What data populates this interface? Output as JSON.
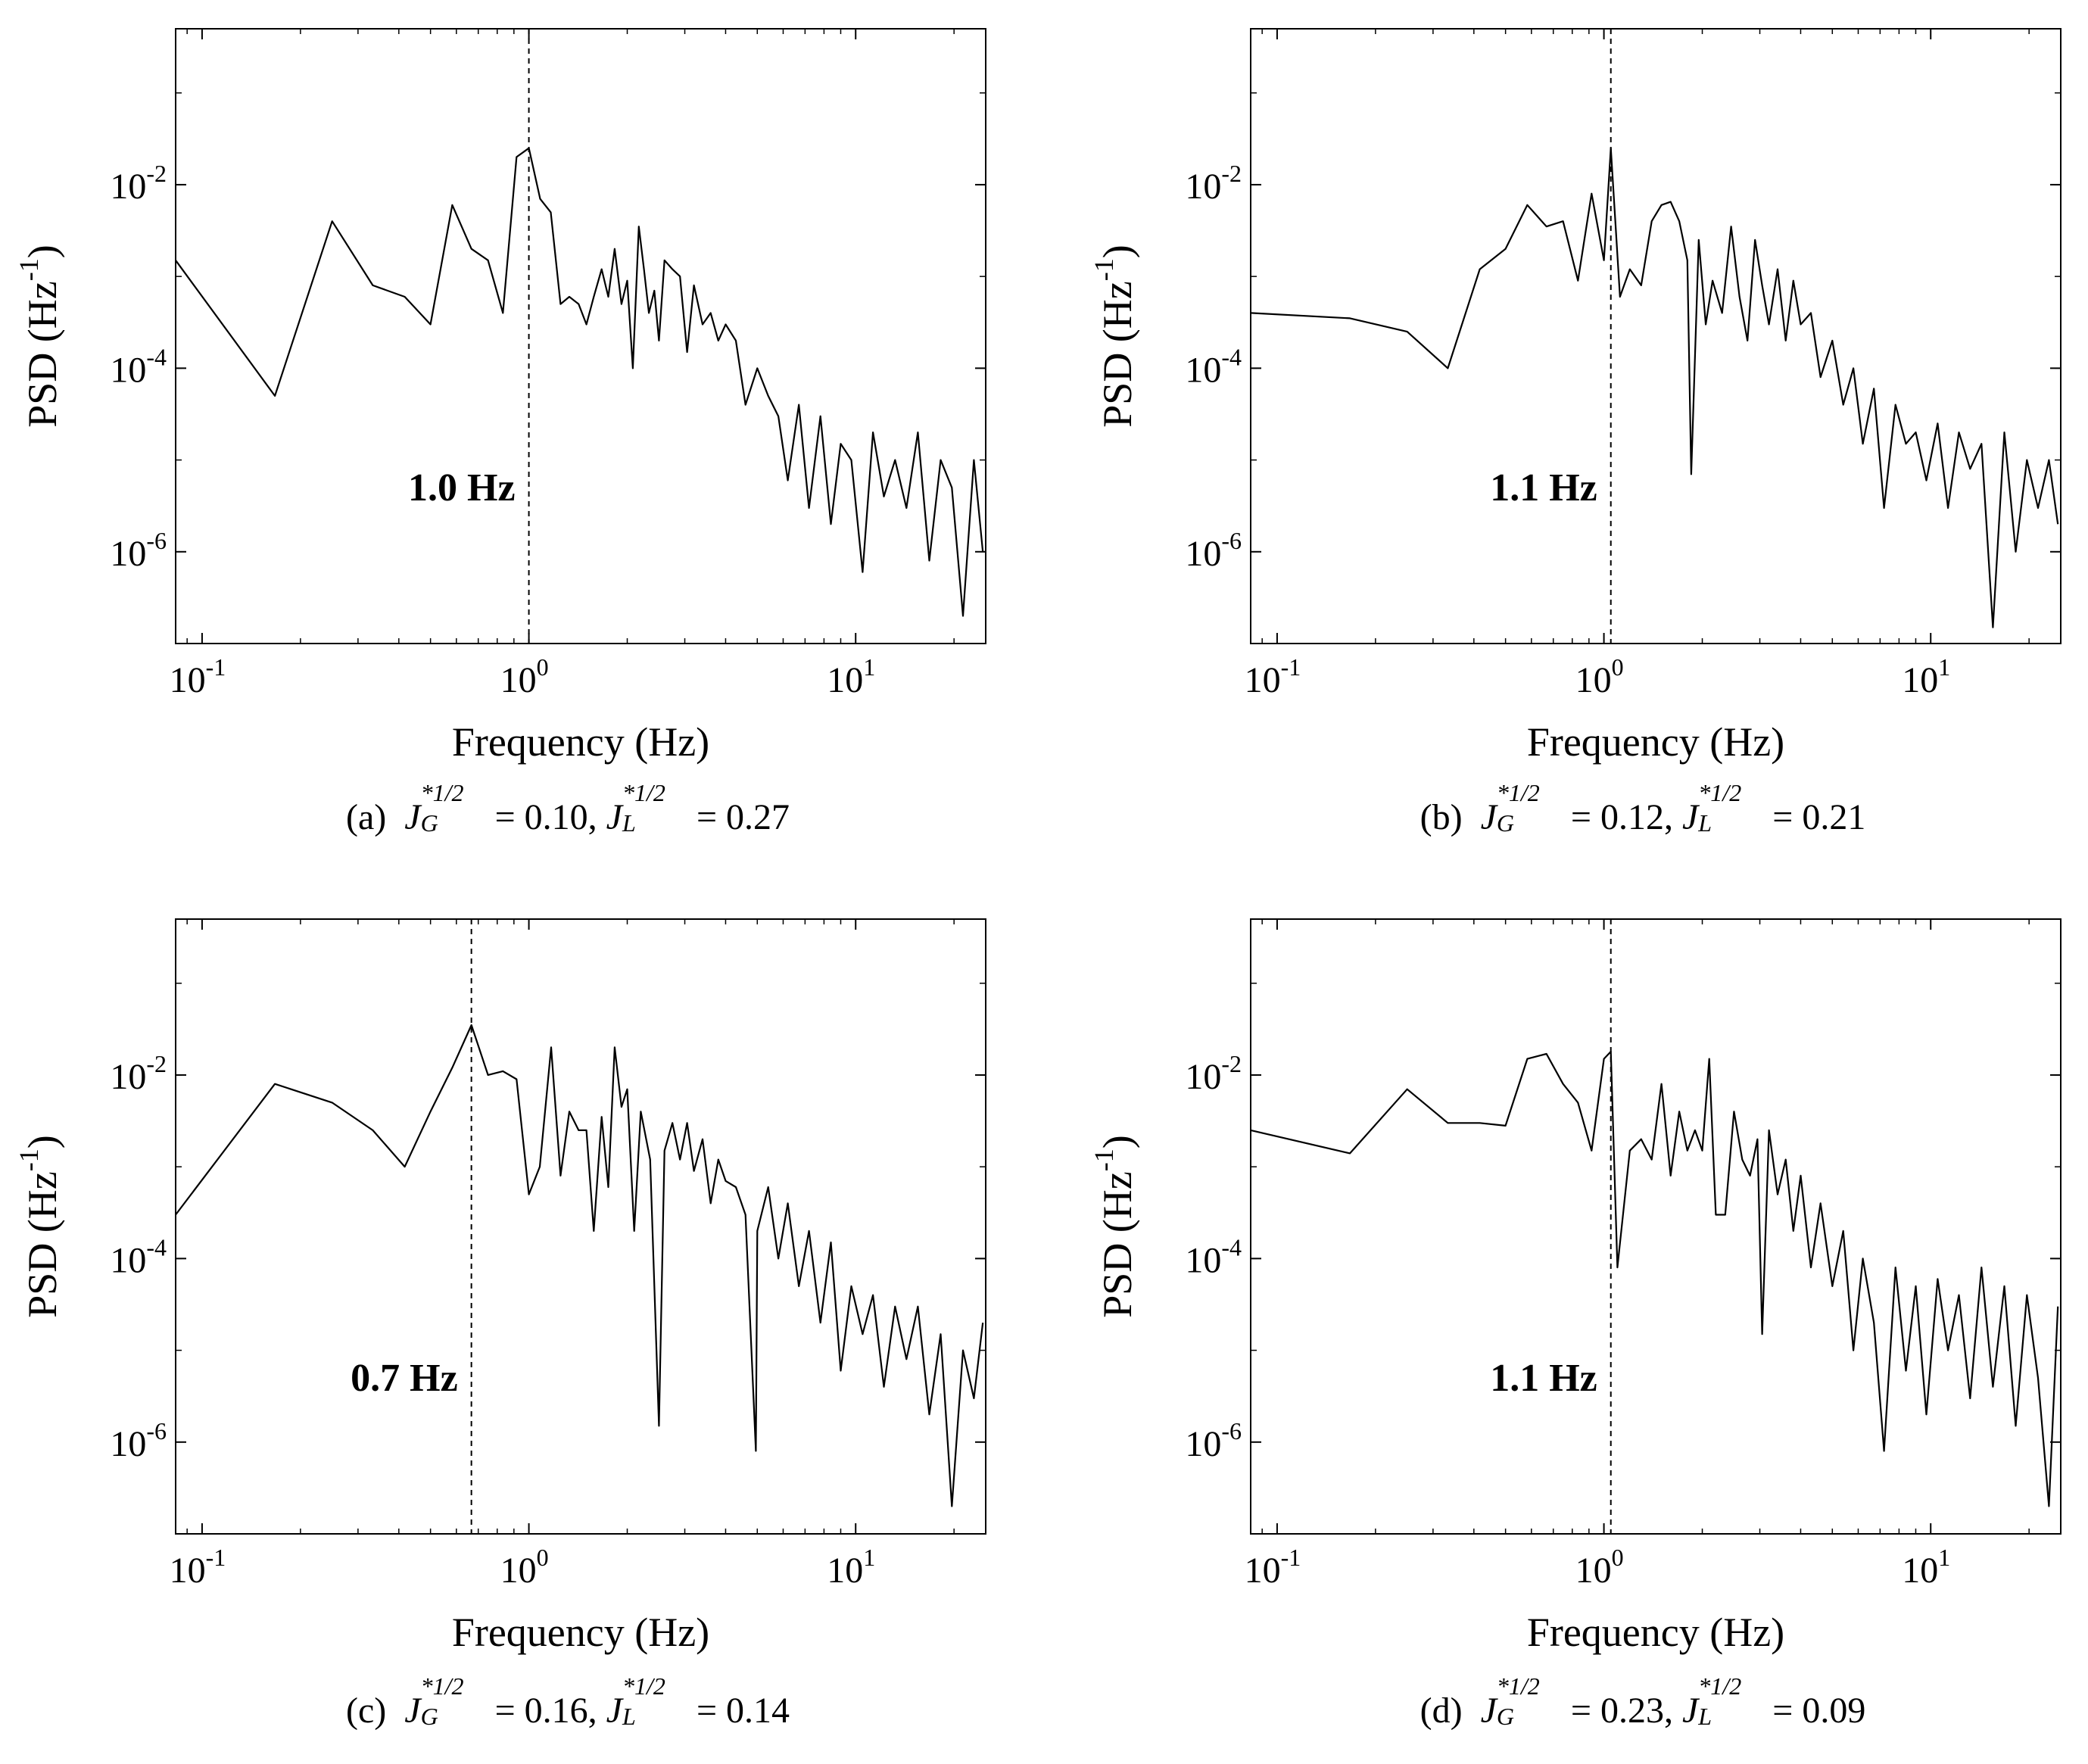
{
  "chart_data": [
    {
      "type": "line",
      "panel_label": "(a)",
      "annotation": "1.0 Hz",
      "peak_frequency": 1.0,
      "xlabel": "Frequency (Hz)",
      "ylabel_main": "PSD (Hz",
      "ylabel_exp": "-1",
      "ylabel_close": ")",
      "xscale": "log",
      "yscale": "log",
      "xlim": [
        0.083,
        25
      ],
      "ylim": [
        1e-07,
        0.5
      ],
      "xticks": [
        {
          "value": 0.1,
          "base": "10",
          "exp": "-1"
        },
        {
          "value": 1,
          "base": "10",
          "exp": "0"
        },
        {
          "value": 10,
          "base": "10",
          "exp": "1"
        }
      ],
      "yticks": [
        {
          "value": 1e-06,
          "base": "10",
          "exp": "-6"
        },
        {
          "value": 0.0001,
          "base": "10",
          "exp": "-4"
        },
        {
          "value": 0.01,
          "base": "10",
          "exp": "-2"
        }
      ],
      "caption": {
        "prefix": "(a)",
        "jg_value": "0.10",
        "jl_value": "0.27"
      },
      "x": [
        0.083,
        0.167,
        0.25,
        0.333,
        0.417,
        0.5,
        0.583,
        0.667,
        0.75,
        0.833,
        0.917,
        1.0,
        1.083,
        1.167,
        1.25,
        1.33,
        1.42,
        1.5,
        1.58,
        1.67,
        1.75,
        1.83,
        1.92,
        2.0,
        2.08,
        2.17,
        2.25,
        2.33,
        2.42,
        2.5,
        2.6,
        2.75,
        2.9,
        3.05,
        3.2,
        3.4,
        3.6,
        3.8,
        4.0,
        4.3,
        4.6,
        5.0,
        5.4,
        5.8,
        6.2,
        6.7,
        7.2,
        7.8,
        8.4,
        9.0,
        9.7,
        10.5,
        11.3,
        12.2,
        13.2,
        14.3,
        15.5,
        16.8,
        18.2,
        19.7,
        21.3,
        23.0,
        24.5
      ],
      "y": [
        0.0015,
        5e-05,
        0.004,
        0.0008,
        0.0006,
        0.0003,
        0.006,
        0.002,
        0.0015,
        0.0004,
        0.02,
        0.025,
        0.007,
        0.005,
        0.0005,
        0.0006,
        0.0005,
        0.0003,
        0.0006,
        0.0012,
        0.0006,
        0.002,
        0.0005,
        0.0009,
        0.0001,
        0.0035,
        0.0012,
        0.0004,
        0.0007,
        0.0002,
        0.0015,
        0.0012,
        0.001,
        0.00015,
        0.0008,
        0.0003,
        0.0004,
        0.0002,
        0.0003,
        0.0002,
        4e-05,
        0.0001,
        5e-05,
        3e-05,
        6e-06,
        4e-05,
        3e-06,
        3e-05,
        2e-06,
        1.5e-05,
        1e-05,
        6e-07,
        2e-05,
        4e-06,
        1e-05,
        3e-06,
        2e-05,
        8e-07,
        1e-05,
        5e-06,
        2e-07,
        1e-05,
        1e-06
      ]
    },
    {
      "type": "line",
      "panel_label": "(b)",
      "annotation": "1.1 Hz",
      "peak_frequency": 1.05,
      "xlabel": "Frequency (Hz)",
      "ylabel_main": "PSD (Hz",
      "ylabel_exp": "-1",
      "ylabel_close": ")",
      "xscale": "log",
      "yscale": "log",
      "xlim": [
        0.083,
        25
      ],
      "ylim": [
        1e-07,
        0.5
      ],
      "xticks": [
        {
          "value": 0.1,
          "base": "10",
          "exp": "-1"
        },
        {
          "value": 1,
          "base": "10",
          "exp": "0"
        },
        {
          "value": 10,
          "base": "10",
          "exp": "1"
        }
      ],
      "yticks": [
        {
          "value": 1e-06,
          "base": "10",
          "exp": "-6"
        },
        {
          "value": 0.0001,
          "base": "10",
          "exp": "-4"
        },
        {
          "value": 0.01,
          "base": "10",
          "exp": "-2"
        }
      ],
      "caption": {
        "prefix": "(b)",
        "jg_value": "0.12",
        "jl_value": "0.21"
      },
      "x": [
        0.083,
        0.167,
        0.25,
        0.333,
        0.417,
        0.5,
        0.583,
        0.667,
        0.75,
        0.833,
        0.917,
        1.0,
        1.05,
        1.12,
        1.2,
        1.3,
        1.4,
        1.5,
        1.6,
        1.7,
        1.8,
        1.85,
        1.95,
        2.05,
        2.15,
        2.3,
        2.45,
        2.6,
        2.75,
        2.9,
        3.05,
        3.2,
        3.4,
        3.6,
        3.8,
        4.0,
        4.3,
        4.6,
        5.0,
        5.4,
        5.8,
        6.2,
        6.7,
        7.2,
        7.8,
        8.4,
        9.0,
        9.7,
        10.5,
        11.3,
        12.2,
        13.2,
        14.3,
        15.5,
        16.8,
        18.2,
        19.7,
        21.3,
        23.0,
        24.5
      ],
      "y": [
        0.0004,
        0.00035,
        0.00025,
        0.0001,
        0.0012,
        0.002,
        0.006,
        0.0035,
        0.004,
        0.0009,
        0.008,
        0.0015,
        0.025,
        0.0006,
        0.0012,
        0.0008,
        0.004,
        0.006,
        0.0065,
        0.004,
        0.0015,
        7e-06,
        0.0025,
        0.0003,
        0.0009,
        0.0004,
        0.0035,
        0.0006,
        0.0002,
        0.0025,
        0.0008,
        0.0003,
        0.0012,
        0.0002,
        0.0009,
        0.0003,
        0.0004,
        8e-05,
        0.0002,
        4e-05,
        0.0001,
        1.5e-05,
        6e-05,
        3e-06,
        4e-05,
        1.5e-05,
        2e-05,
        6e-06,
        2.5e-05,
        3e-06,
        2e-05,
        8e-06,
        1.5e-05,
        1.5e-07,
        2e-05,
        1e-06,
        1e-05,
        3e-06,
        1e-05,
        2e-06
      ]
    },
    {
      "type": "line",
      "panel_label": "(c)",
      "annotation": "0.7 Hz",
      "peak_frequency": 0.667,
      "xlabel": "Frequency (Hz)",
      "ylabel_main": "PSD (Hz",
      "ylabel_exp": "-1",
      "ylabel_close": ")",
      "xscale": "log",
      "yscale": "log",
      "xlim": [
        0.083,
        25
      ],
      "ylim": [
        1e-07,
        0.5
      ],
      "xticks": [
        {
          "value": 0.1,
          "base": "10",
          "exp": "-1"
        },
        {
          "value": 1,
          "base": "10",
          "exp": "0"
        },
        {
          "value": 10,
          "base": "10",
          "exp": "1"
        }
      ],
      "yticks": [
        {
          "value": 1e-06,
          "base": "10",
          "exp": "-6"
        },
        {
          "value": 0.0001,
          "base": "10",
          "exp": "-4"
        },
        {
          "value": 0.01,
          "base": "10",
          "exp": "-2"
        }
      ],
      "caption": {
        "prefix": "(c)",
        "jg_value": "0.16",
        "jl_value": "0.14"
      },
      "x": [
        0.083,
        0.167,
        0.25,
        0.333,
        0.417,
        0.5,
        0.583,
        0.667,
        0.75,
        0.833,
        0.917,
        1.0,
        1.08,
        1.17,
        1.25,
        1.33,
        1.42,
        1.5,
        1.58,
        1.67,
        1.75,
        1.83,
        1.92,
        2.0,
        2.1,
        2.2,
        2.35,
        2.5,
        2.6,
        2.75,
        2.9,
        3.05,
        3.2,
        3.4,
        3.6,
        3.8,
        4.0,
        4.3,
        4.6,
        4.95,
        5.0,
        5.4,
        5.8,
        6.2,
        6.7,
        7.2,
        7.8,
        8.4,
        9.0,
        9.7,
        10.5,
        11.3,
        12.2,
        13.2,
        14.3,
        15.5,
        16.8,
        18.2,
        19.7,
        21.3,
        23.0,
        24.5
      ],
      "y": [
        0.0003,
        0.008,
        0.005,
        0.0025,
        0.001,
        0.004,
        0.012,
        0.035,
        0.01,
        0.011,
        0.009,
        0.0005,
        0.001,
        0.02,
        0.0008,
        0.004,
        0.0025,
        0.0025,
        0.0002,
        0.0035,
        0.0006,
        0.02,
        0.0045,
        0.007,
        0.0002,
        0.004,
        0.0012,
        1.5e-06,
        0.0015,
        0.003,
        0.0012,
        0.003,
        0.0009,
        0.002,
        0.0004,
        0.0012,
        0.0007,
        0.0006,
        0.0003,
        8e-07,
        0.0002,
        0.0006,
        0.0001,
        0.0004,
        5e-05,
        0.0002,
        2e-05,
        0.00015,
        6e-06,
        5e-05,
        1.5e-05,
        4e-05,
        4e-06,
        3e-05,
        8e-06,
        3e-05,
        2e-06,
        1.5e-05,
        2e-07,
        1e-05,
        3e-06,
        2e-05
      ]
    },
    {
      "type": "line",
      "panel_label": "(d)",
      "annotation": "1.1 Hz",
      "peak_frequency": 1.05,
      "xlabel": "Frequency (Hz)",
      "ylabel_main": "PSD (Hz",
      "ylabel_exp": "-1",
      "ylabel_close": ")",
      "xscale": "log",
      "yscale": "log",
      "xlim": [
        0.083,
        25
      ],
      "ylim": [
        1e-07,
        0.5
      ],
      "xticks": [
        {
          "value": 0.1,
          "base": "10",
          "exp": "-1"
        },
        {
          "value": 1,
          "base": "10",
          "exp": "0"
        },
        {
          "value": 10,
          "base": "10",
          "exp": "1"
        }
      ],
      "yticks": [
        {
          "value": 1e-06,
          "base": "10",
          "exp": "-6"
        },
        {
          "value": 0.0001,
          "base": "10",
          "exp": "-4"
        },
        {
          "value": 0.01,
          "base": "10",
          "exp": "-2"
        }
      ],
      "caption": {
        "prefix": "(d)",
        "jg_value": "0.23",
        "jl_value": "0.09"
      },
      "x": [
        0.083,
        0.167,
        0.25,
        0.333,
        0.417,
        0.5,
        0.583,
        0.667,
        0.75,
        0.833,
        0.917,
        1.0,
        1.05,
        1.1,
        1.2,
        1.3,
        1.4,
        1.5,
        1.6,
        1.7,
        1.8,
        1.9,
        2.0,
        2.1,
        2.2,
        2.35,
        2.5,
        2.65,
        2.8,
        2.95,
        3.05,
        3.2,
        3.4,
        3.6,
        3.8,
        4.0,
        4.3,
        4.6,
        5.0,
        5.4,
        5.8,
        6.2,
        6.7,
        7.2,
        7.8,
        8.4,
        9.0,
        9.7,
        10.5,
        11.3,
        12.2,
        13.2,
        14.3,
        15.5,
        16.8,
        18.2,
        19.7,
        21.3,
        23.0,
        24.5
      ],
      "y": [
        0.0025,
        0.0014,
        0.007,
        0.003,
        0.003,
        0.0028,
        0.015,
        0.017,
        0.008,
        0.005,
        0.0015,
        0.015,
        0.018,
        8e-05,
        0.0015,
        0.002,
        0.0012,
        0.008,
        0.0008,
        0.004,
        0.0015,
        0.0025,
        0.0015,
        0.015,
        0.0003,
        0.0003,
        0.004,
        0.0012,
        0.0008,
        0.002,
        1.5e-05,
        0.0025,
        0.0005,
        0.0012,
        0.0002,
        0.0008,
        8e-05,
        0.0004,
        5e-05,
        0.0002,
        1e-05,
        0.0001,
        2e-05,
        8e-07,
        8e-05,
        6e-06,
        5e-05,
        2e-06,
        6e-05,
        1e-05,
        4e-05,
        3e-06,
        8e-05,
        4e-06,
        5e-05,
        1.5e-06,
        4e-05,
        5e-06,
        2e-07,
        3e-05
      ]
    }
  ],
  "caption_symbols": {
    "j": "J",
    "sup": "*1/2",
    "sub_g": "G",
    "sub_l": "L",
    "equals": "=",
    "comma": ","
  }
}
